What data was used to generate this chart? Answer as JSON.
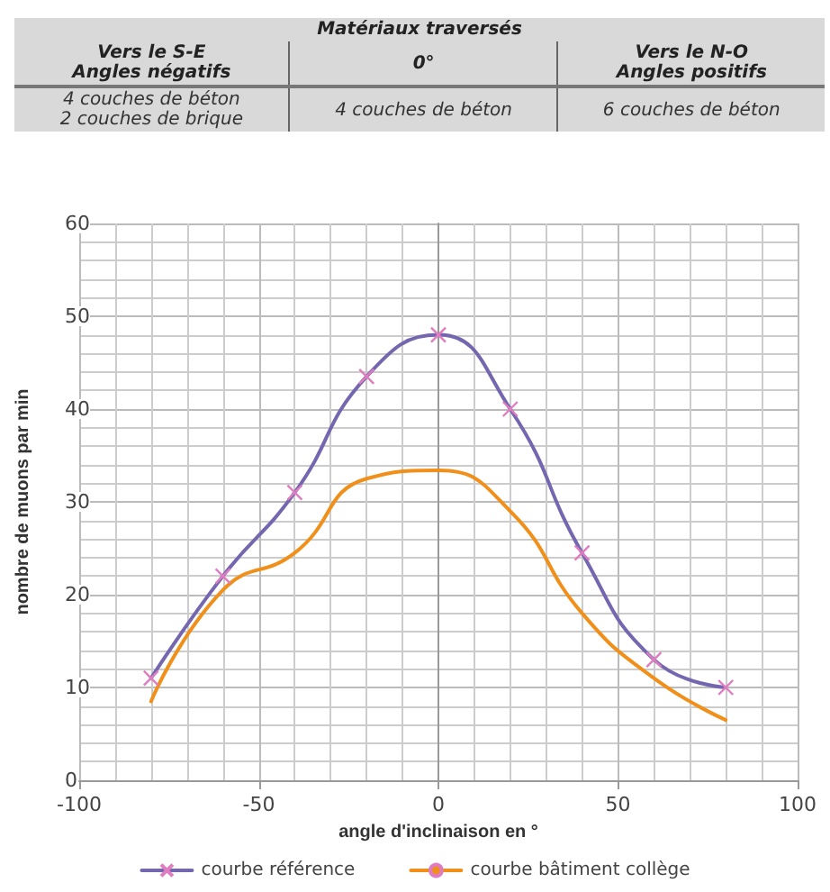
{
  "chart_data": {
    "type": "line",
    "annotations": [
      "Matériaux traversés",
      "Vers le S-E\nAngles négatifs",
      "0°",
      "Vers le N-O\nAngles positifs",
      "4 couches de béton\n2 couches de brique",
      "4 couches de béton",
      "6 couches de béton"
    ],
    "xlabel": "angle d'inclinaison en °",
    "ylabel": "nombre de muons par min",
    "x": [
      -80,
      -60,
      -40,
      -20,
      0,
      20,
      40,
      60,
      80
    ],
    "series": [
      {
        "name": "courbe référence",
        "color": "#7566b0",
        "marker": "cross",
        "values": [
          11,
          22,
          31,
          43.5,
          48,
          40,
          24.5,
          13,
          10
        ]
      },
      {
        "name": "courbe bâtiment collège",
        "color": "#f0901a",
        "marker": "none",
        "values": [
          8.5,
          20.5,
          24.5,
          32.5,
          33.4,
          29,
          18,
          11,
          6.5
        ]
      }
    ],
    "xlim": [
      -100,
      100
    ],
    "xticks": [
      -100,
      -50,
      0,
      50,
      100
    ],
    "ylim": [
      0,
      60
    ],
    "yticks": [
      0,
      10,
      20,
      30,
      40,
      50,
      60
    ],
    "grid": true,
    "legend": "bottom"
  }
}
